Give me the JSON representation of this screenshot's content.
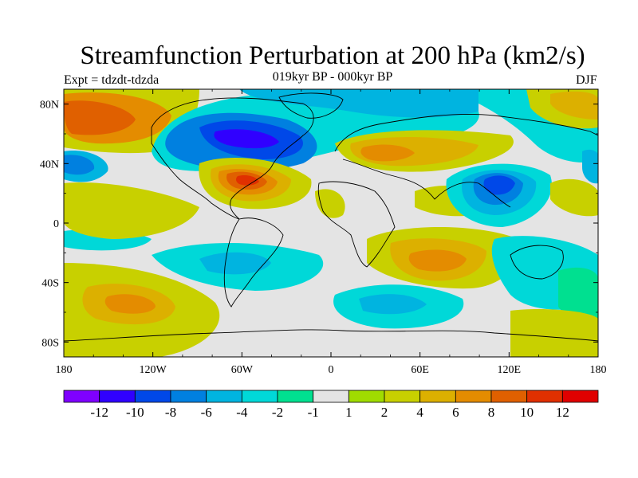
{
  "title": "Streamfunction Perturbation at 200 hPa (km2/s)",
  "subtitle": "019kyr BP - 000kyr BP",
  "experiment": "Expt = tdzdt-tdzda",
  "season": "DJF",
  "map": {
    "lon_range": [
      -180,
      180
    ],
    "lat_range": [
      -90,
      90
    ],
    "projection": "cylindrical equidistant",
    "lon_tick_labels": [
      "180",
      "120W",
      "60W",
      "0",
      "60E",
      "120E",
      "180"
    ],
    "lat_tick_labels": [
      "80N",
      "40N",
      "0",
      "40S",
      "80S"
    ]
  },
  "colorbar": {
    "colors": [
      "#7f00ff",
      "#3000ff",
      "#0048e8",
      "#0080e0",
      "#00b4e0",
      "#00d8d8",
      "#00e090",
      "#e4e4e4",
      "#a0dc00",
      "#c8d000",
      "#dcb000",
      "#e48c00",
      "#e06000",
      "#e03000",
      "#e00000"
    ],
    "labels": [
      "-12",
      "-10",
      "-8",
      "-6",
      "-4",
      "-2",
      "-1",
      "1",
      "2",
      "4",
      "6",
      "8",
      "10",
      "12"
    ]
  }
}
